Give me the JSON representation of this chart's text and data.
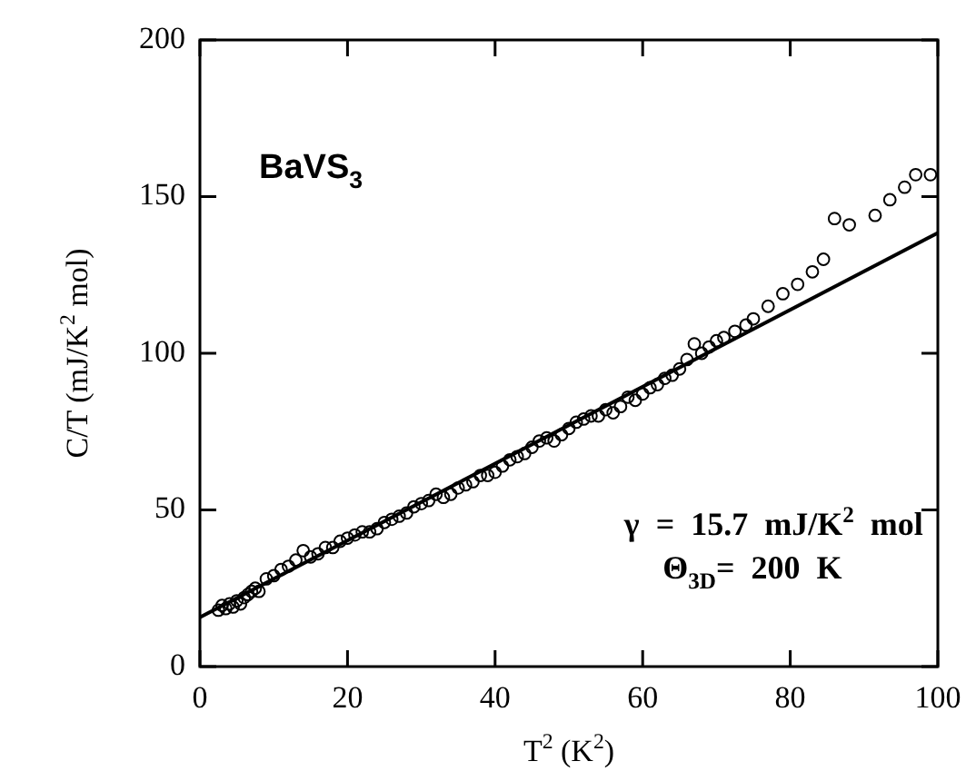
{
  "chart_data": {
    "type": "scatter",
    "xlabel": "T$^{2}$ (K$^{2}$)",
    "ylabel": "C/T (mJ/K$^{2}$ mol)",
    "xlim": [
      0,
      100
    ],
    "xticks": [
      0,
      20,
      40,
      60,
      80,
      100
    ],
    "ylim": [
      0,
      200
    ],
    "yticks": [
      0,
      50,
      100,
      150,
      200
    ],
    "marker": "circle",
    "annotations": [
      "BaVS$_{3}$",
      "γ  =  15.7  mJ/K$^{2}$  mol",
      "Θ$_{3D}$=  200  K"
    ],
    "series": [
      {
        "color": "#000000",
        "x": [
          2.5,
          3,
          3.5,
          4,
          4.5,
          5,
          5.5,
          6,
          6.5,
          7,
          7.5,
          8,
          9,
          10,
          11,
          12,
          13,
          14,
          15,
          16,
          17,
          18,
          19,
          20,
          21,
          22,
          23,
          24,
          25,
          26,
          27,
          28,
          29,
          30,
          31,
          32,
          33,
          34,
          35,
          36,
          37,
          38,
          39,
          40,
          41,
          42,
          43,
          44,
          45,
          46,
          47,
          48,
          49,
          50,
          51,
          52,
          53,
          54,
          55,
          56,
          57,
          58,
          59,
          60,
          61,
          62,
          63,
          64,
          65,
          66,
          67,
          68,
          69,
          70,
          71,
          72.5,
          74,
          75,
          77,
          79,
          81,
          83,
          84.5,
          86,
          88,
          91.5,
          93.5,
          95.5,
          97,
          99
        ],
        "values": [
          18,
          19.5,
          18.5,
          20,
          19,
          21,
          20,
          22,
          23,
          24,
          25,
          24,
          28,
          29,
          31,
          32,
          34,
          37,
          35,
          36,
          38,
          38,
          40,
          41,
          42,
          43,
          43,
          44,
          46,
          47,
          48,
          49,
          51,
          52,
          53,
          55,
          54,
          55,
          57,
          58,
          59,
          61,
          61,
          62,
          64,
          66,
          67,
          68,
          70,
          72,
          73,
          72,
          74,
          76,
          78,
          79,
          80,
          80,
          82,
          81,
          83,
          86,
          85,
          87,
          89,
          90,
          92,
          93,
          95,
          98,
          103,
          100,
          102,
          104,
          105,
          107,
          109,
          111,
          115,
          119,
          122,
          126,
          130,
          143,
          141,
          144,
          149,
          153,
          157,
          157
        ]
      },
      {
        "type": "line",
        "color": "#000000",
        "line_style": "solid",
        "marker": "none",
        "x": [
          0,
          100
        ],
        "values": [
          15.7,
          138.4
        ]
      }
    ]
  }
}
